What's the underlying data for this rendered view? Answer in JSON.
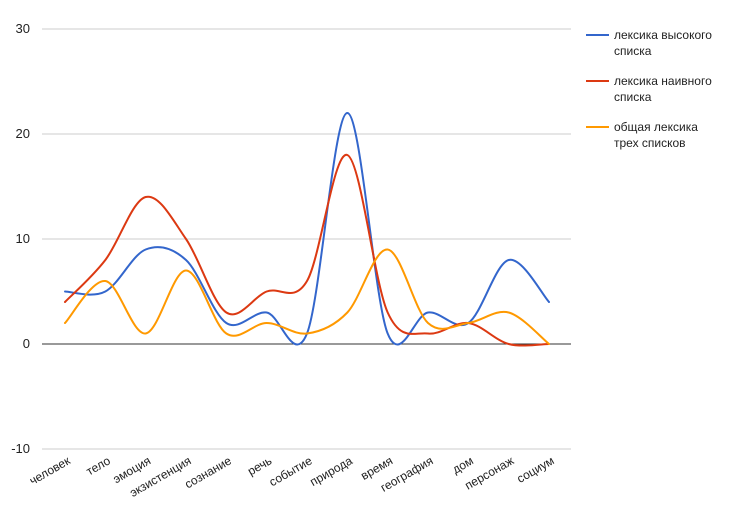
{
  "chart_data": {
    "type": "line",
    "smooth": true,
    "categories": [
      "человек",
      "тело",
      "эмоция",
      "экзистенция",
      "сознание",
      "речь",
      "событие",
      "природа",
      "время",
      "география",
      "дом",
      "персонаж",
      "социум"
    ],
    "series": [
      {
        "name_lines": [
          "лексика высокого",
          "списка"
        ],
        "color": "#3366cc",
        "values": [
          5,
          5,
          9,
          8,
          2,
          3,
          1,
          22,
          1,
          3,
          2,
          8,
          4
        ]
      },
      {
        "name_lines": [
          "лексика наивного",
          "списка"
        ],
        "color": "#dc3912",
        "values": [
          4,
          8,
          14,
          10,
          3,
          5,
          6,
          18,
          3,
          1,
          2,
          0,
          0
        ]
      },
      {
        "name_lines": [
          "общая лексика",
          "трех списков"
        ],
        "color": "#ff9900",
        "values": [
          2,
          6,
          1,
          7,
          1,
          2,
          1,
          3,
          9,
          2,
          2,
          3,
          0
        ]
      }
    ],
    "y_ticks": [
      30,
      20,
      10,
      0,
      -10
    ],
    "ylim": [
      -10,
      30
    ],
    "grid": true,
    "legend_position": "right"
  }
}
